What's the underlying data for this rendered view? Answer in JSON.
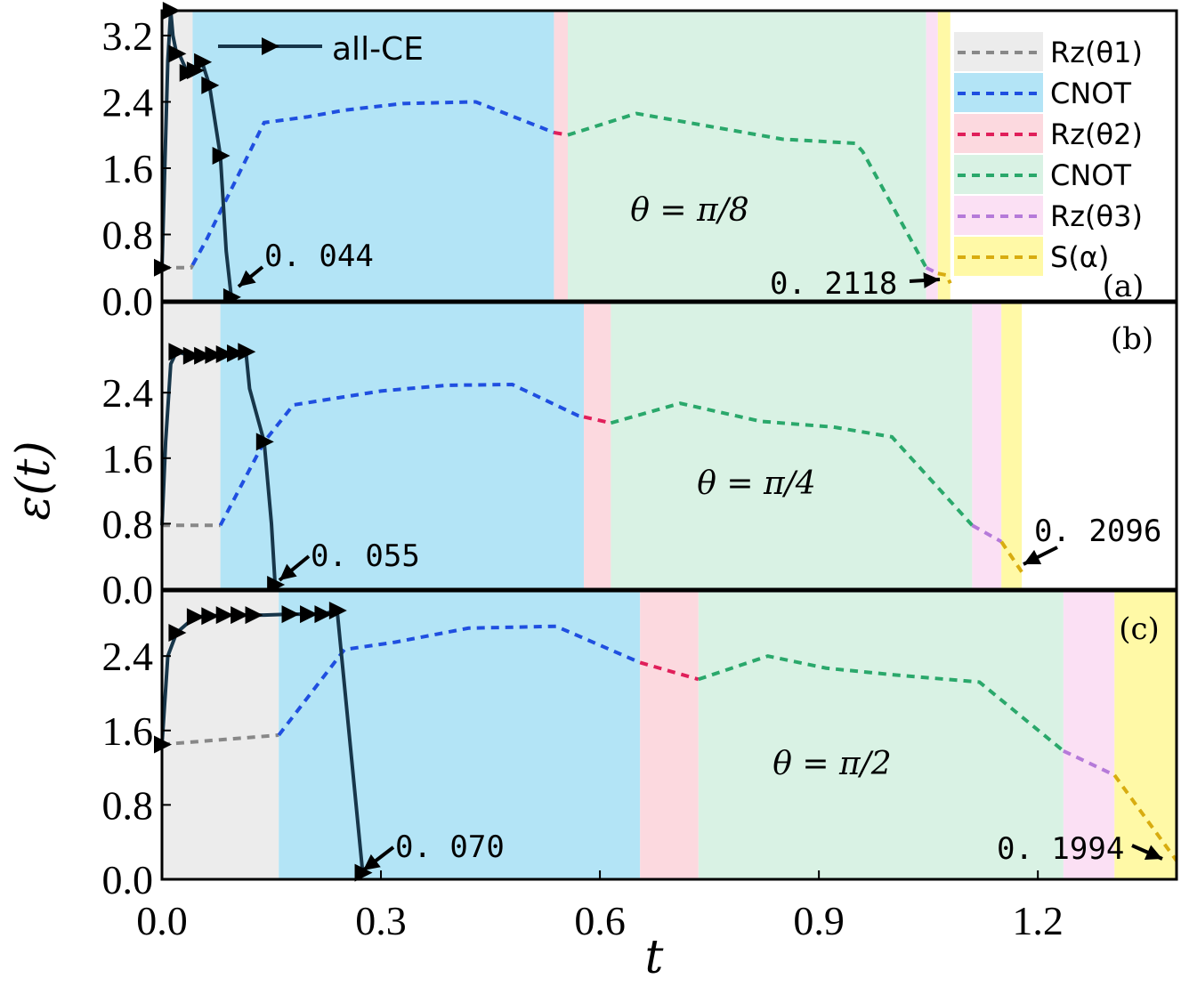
{
  "chart_data": {
    "type": "line",
    "xlabel": "t",
    "ylabel": "ε(t)",
    "xlim": [
      0,
      1.39
    ],
    "x_ticks": [
      "0.0",
      "0.3",
      "0.6",
      "0.9",
      "1.2"
    ],
    "x_tick_values": [
      0,
      0.3,
      0.6,
      0.9,
      1.2
    ],
    "legend": {
      "placement": "top-right",
      "items": [
        {
          "label": "Rz(θ1)",
          "color": "#888888",
          "bg": "#ececec"
        },
        {
          "label": "CNOT",
          "color": "#1f4fe0",
          "bg": "#b3e4f6"
        },
        {
          "label": "Rz(θ2)",
          "color": "#e01f5a",
          "bg": "#fcd9df"
        },
        {
          "label": "CNOT",
          "color": "#2aa86b",
          "bg": "#d9f2e4"
        },
        {
          "label": "Rz(θ3)",
          "color": "#b57ad9",
          "bg": "#fbe0f4"
        },
        {
          "label": "S(α)",
          "color": "#d8ac10",
          "bg": "#fff9a6"
        }
      ]
    },
    "allce_label": "all-CE",
    "panels": [
      {
        "tag": "(a)",
        "theta_label": "θ = π/8",
        "ylim": [
          0,
          3.5
        ],
        "y_ticks": [
          "0.0",
          "0.8",
          "1.6",
          "2.4",
          "3.2"
        ],
        "y_tick_values": [
          0,
          0.8,
          1.6,
          2.4,
          3.2
        ],
        "boundaries": [
          0,
          0.042,
          0.537,
          0.556,
          1.047,
          1.063,
          1.08
        ],
        "gate_curve": [
          [
            0,
            0.4
          ],
          [
            0.04,
            0.4
          ],
          [
            0.06,
            0.72
          ],
          [
            0.14,
            2.15
          ],
          [
            0.2,
            2.22
          ],
          [
            0.25,
            2.3
          ],
          [
            0.33,
            2.38
          ],
          [
            0.43,
            2.4
          ],
          [
            0.537,
            2.03
          ],
          [
            0.556,
            2.0
          ],
          [
            0.65,
            2.26
          ],
          [
            0.85,
            1.95
          ],
          [
            0.95,
            1.9
          ],
          [
            0.96,
            1.8
          ],
          [
            1.047,
            0.4
          ],
          [
            1.063,
            0.33
          ],
          [
            1.075,
            0.31
          ],
          [
            1.08,
            0.2118
          ]
        ],
        "allce_curve": [
          [
            0.0,
            0.4
          ],
          [
            0.008,
            2.9
          ],
          [
            0.012,
            3.5
          ],
          [
            0.015,
            3.2
          ],
          [
            0.02,
            2.98
          ],
          [
            0.025,
            2.95
          ],
          [
            0.035,
            2.75
          ],
          [
            0.045,
            2.78
          ],
          [
            0.055,
            2.88
          ],
          [
            0.065,
            2.6
          ],
          [
            0.08,
            1.75
          ],
          [
            0.088,
            0.6
          ],
          [
            0.095,
            0.044
          ]
        ],
        "marker_indices": [
          0,
          2,
          4,
          6,
          7,
          8,
          9,
          10,
          12
        ],
        "min_label": "0. 044",
        "min_point": [
          0.095,
          0.044
        ],
        "end_label": "0. 2118",
        "end_point": [
          1.08,
          0.2118
        ]
      },
      {
        "tag": "(b)",
        "theta_label": "θ = π/4",
        "ylim": [
          0,
          3.5
        ],
        "y_ticks": [
          "0.0",
          "0.8",
          "1.6",
          "2.4"
        ],
        "y_tick_values": [
          0,
          0.8,
          1.6,
          2.4
        ],
        "boundaries": [
          0,
          0.08,
          0.578,
          0.615,
          1.11,
          1.15,
          1.178
        ],
        "gate_curve": [
          [
            0,
            0.78
          ],
          [
            0.08,
            0.78
          ],
          [
            0.14,
            1.8
          ],
          [
            0.18,
            2.25
          ],
          [
            0.3,
            2.42
          ],
          [
            0.39,
            2.49
          ],
          [
            0.48,
            2.5
          ],
          [
            0.57,
            2.12
          ],
          [
            0.615,
            2.03
          ],
          [
            0.71,
            2.27
          ],
          [
            0.82,
            2.05
          ],
          [
            0.92,
            1.98
          ],
          [
            1.0,
            1.86
          ],
          [
            1.11,
            0.78
          ],
          [
            1.15,
            0.58
          ],
          [
            1.178,
            0.2096
          ]
        ],
        "allce_curve": [
          [
            0.0,
            0.78
          ],
          [
            0.005,
            1.8
          ],
          [
            0.012,
            2.75
          ],
          [
            0.02,
            2.9
          ],
          [
            0.04,
            2.85
          ],
          [
            0.055,
            2.85
          ],
          [
            0.07,
            2.86
          ],
          [
            0.085,
            2.87
          ],
          [
            0.1,
            2.88
          ],
          [
            0.115,
            2.9
          ],
          [
            0.12,
            2.45
          ],
          [
            0.14,
            1.8
          ],
          [
            0.15,
            0.8
          ],
          [
            0.155,
            0.055
          ]
        ],
        "marker_indices": [
          3,
          4,
          5,
          6,
          7,
          8,
          9,
          11,
          13
        ],
        "min_label": "0. 055",
        "min_point": [
          0.155,
          0.055
        ],
        "end_label": "0. 2096",
        "end_point": [
          1.178,
          0.2096
        ]
      },
      {
        "tag": "(c)",
        "theta_label": "θ = π/2",
        "ylim": [
          0,
          3.1
        ],
        "y_ticks": [
          "0.0",
          "0.8",
          "1.6",
          "2.4"
        ],
        "y_tick_values": [
          0,
          0.8,
          1.6,
          2.4
        ],
        "boundaries": [
          0,
          0.16,
          0.655,
          0.735,
          1.235,
          1.305,
          1.39
        ],
        "gate_curve": [
          [
            0,
            1.45
          ],
          [
            0.16,
            1.55
          ],
          [
            0.25,
            2.47
          ],
          [
            0.32,
            2.55
          ],
          [
            0.42,
            2.7
          ],
          [
            0.54,
            2.72
          ],
          [
            0.655,
            2.33
          ],
          [
            0.735,
            2.15
          ],
          [
            0.83,
            2.4
          ],
          [
            0.91,
            2.27
          ],
          [
            1.0,
            2.2
          ],
          [
            1.12,
            2.12
          ],
          [
            1.235,
            1.38
          ],
          [
            1.305,
            1.12
          ],
          [
            1.39,
            0.1994
          ]
        ],
        "allce_curve": [
          [
            0.0,
            1.45
          ],
          [
            0.008,
            2.4
          ],
          [
            0.02,
            2.65
          ],
          [
            0.045,
            2.82
          ],
          [
            0.065,
            2.83
          ],
          [
            0.085,
            2.84
          ],
          [
            0.105,
            2.84
          ],
          [
            0.125,
            2.84
          ],
          [
            0.14,
            2.84
          ],
          [
            0.175,
            2.85
          ],
          [
            0.2,
            2.85
          ],
          [
            0.22,
            2.85
          ],
          [
            0.24,
            2.89
          ],
          [
            0.275,
            0.07
          ]
        ],
        "marker_indices": [
          0,
          2,
          3,
          4,
          5,
          6,
          7,
          9,
          10,
          11,
          12,
          13
        ],
        "min_label": "0. 070",
        "min_point": [
          0.275,
          0.07
        ],
        "end_label": "0. 1994",
        "end_point": [
          1.39,
          0.1994
        ]
      }
    ]
  }
}
